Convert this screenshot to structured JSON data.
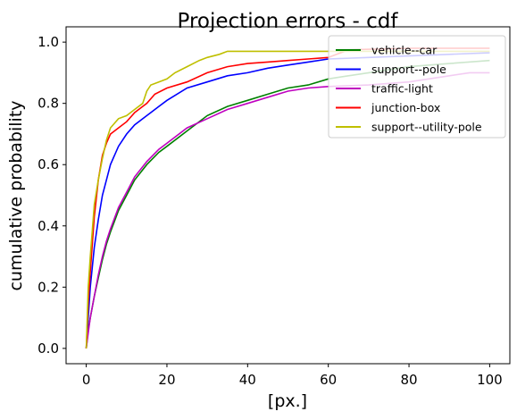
{
  "chart_data": {
    "type": "line",
    "title": "Projection errors - cdf",
    "xlabel": "[px.]",
    "ylabel": "cumulative probability",
    "xlim": [
      -5,
      105
    ],
    "ylim": [
      -0.05,
      1.05
    ],
    "xticks": [
      0,
      20,
      40,
      60,
      80,
      100
    ],
    "yticks": [
      0.0,
      0.2,
      0.4,
      0.6,
      0.8,
      1.0
    ],
    "xtick_labels": [
      "0",
      "20",
      "40",
      "60",
      "80",
      "100"
    ],
    "ytick_labels": [
      "0.0",
      "0.2",
      "0.4",
      "0.6",
      "0.8",
      "1.0"
    ],
    "grid": false,
    "legend_position": "top-right",
    "series": [
      {
        "name": "vehicle--car",
        "color": "#008000",
        "points": [
          [
            0,
            0
          ],
          [
            0.5,
            0.06
          ],
          [
            1,
            0.1
          ],
          [
            2,
            0.17
          ],
          [
            3,
            0.23
          ],
          [
            4,
            0.29
          ],
          [
            5,
            0.34
          ],
          [
            6,
            0.38
          ],
          [
            8,
            0.45
          ],
          [
            10,
            0.5
          ],
          [
            12,
            0.55
          ],
          [
            15,
            0.6
          ],
          [
            18,
            0.64
          ],
          [
            20,
            0.66
          ],
          [
            25,
            0.71
          ],
          [
            30,
            0.76
          ],
          [
            35,
            0.79
          ],
          [
            40,
            0.81
          ],
          [
            45,
            0.83
          ],
          [
            50,
            0.85
          ],
          [
            55,
            0.86
          ],
          [
            60,
            0.88
          ],
          [
            65,
            0.89
          ],
          [
            70,
            0.9
          ],
          [
            80,
            0.92
          ],
          [
            90,
            0.93
          ],
          [
            100,
            0.94
          ]
        ]
      },
      {
        "name": "support--pole",
        "color": "#0000ff",
        "points": [
          [
            0,
            0
          ],
          [
            0.5,
            0.1
          ],
          [
            1,
            0.2
          ],
          [
            2,
            0.33
          ],
          [
            3,
            0.42
          ],
          [
            4,
            0.5
          ],
          [
            5,
            0.55
          ],
          [
            6,
            0.6
          ],
          [
            8,
            0.66
          ],
          [
            10,
            0.7
          ],
          [
            12,
            0.73
          ],
          [
            15,
            0.76
          ],
          [
            18,
            0.79
          ],
          [
            20,
            0.81
          ],
          [
            25,
            0.85
          ],
          [
            30,
            0.87
          ],
          [
            35,
            0.89
          ],
          [
            40,
            0.9
          ],
          [
            45,
            0.915
          ],
          [
            50,
            0.925
          ],
          [
            55,
            0.935
          ],
          [
            60,
            0.945
          ],
          [
            70,
            0.95
          ],
          [
            80,
            0.955
          ],
          [
            90,
            0.96
          ],
          [
            100,
            0.965
          ]
        ]
      },
      {
        "name": "traffic-light",
        "color": "#bf00bf",
        "points": [
          [
            0,
            0
          ],
          [
            0.5,
            0.05
          ],
          [
            1,
            0.1
          ],
          [
            2,
            0.17
          ],
          [
            3,
            0.24
          ],
          [
            4,
            0.3
          ],
          [
            5,
            0.35
          ],
          [
            6,
            0.39
          ],
          [
            8,
            0.46
          ],
          [
            10,
            0.51
          ],
          [
            12,
            0.56
          ],
          [
            15,
            0.61
          ],
          [
            18,
            0.65
          ],
          [
            20,
            0.67
          ],
          [
            25,
            0.72
          ],
          [
            30,
            0.75
          ],
          [
            35,
            0.78
          ],
          [
            40,
            0.8
          ],
          [
            45,
            0.82
          ],
          [
            50,
            0.84
          ],
          [
            55,
            0.85
          ],
          [
            60,
            0.855
          ],
          [
            70,
            0.86
          ],
          [
            80,
            0.87
          ],
          [
            90,
            0.89
          ],
          [
            95,
            0.9
          ],
          [
            100,
            0.9
          ]
        ]
      },
      {
        "name": "junction-box",
        "color": "#ff0000",
        "points": [
          [
            0,
            0
          ],
          [
            0.5,
            0.15
          ],
          [
            1,
            0.25
          ],
          [
            2,
            0.43
          ],
          [
            3,
            0.55
          ],
          [
            4,
            0.63
          ],
          [
            5,
            0.67
          ],
          [
            6,
            0.7
          ],
          [
            8,
            0.72
          ],
          [
            10,
            0.74
          ],
          [
            12,
            0.77
          ],
          [
            14,
            0.79
          ],
          [
            15,
            0.8
          ],
          [
            17,
            0.83
          ],
          [
            20,
            0.85
          ],
          [
            25,
            0.87
          ],
          [
            30,
            0.9
          ],
          [
            35,
            0.92
          ],
          [
            40,
            0.93
          ],
          [
            45,
            0.935
          ],
          [
            50,
            0.94
          ],
          [
            55,
            0.945
          ],
          [
            60,
            0.95
          ],
          [
            65,
            0.975
          ],
          [
            80,
            0.98
          ],
          [
            90,
            0.98
          ],
          [
            100,
            0.98
          ]
        ]
      },
      {
        "name": "support--utility-pole",
        "color": "#bfbf00",
        "points": [
          [
            0,
            0
          ],
          [
            0.5,
            0.2
          ],
          [
            1,
            0.3
          ],
          [
            2,
            0.47
          ],
          [
            3,
            0.55
          ],
          [
            4,
            0.62
          ],
          [
            5,
            0.68
          ],
          [
            6,
            0.72
          ],
          [
            8,
            0.75
          ],
          [
            10,
            0.76
          ],
          [
            12,
            0.78
          ],
          [
            14,
            0.8
          ],
          [
            15,
            0.84
          ],
          [
            16,
            0.86
          ],
          [
            18,
            0.87
          ],
          [
            20,
            0.88
          ],
          [
            22,
            0.9
          ],
          [
            25,
            0.92
          ],
          [
            28,
            0.94
          ],
          [
            30,
            0.95
          ],
          [
            33,
            0.96
          ],
          [
            35,
            0.97
          ],
          [
            40,
            0.97
          ],
          [
            60,
            0.97
          ],
          [
            80,
            0.97
          ],
          [
            100,
            0.97
          ]
        ]
      }
    ]
  }
}
